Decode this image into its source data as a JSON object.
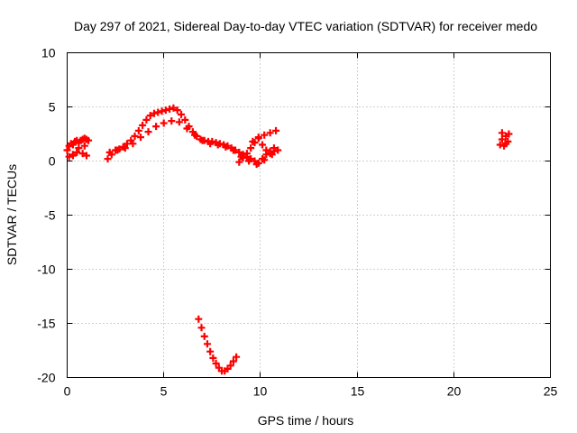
{
  "chart_data": {
    "type": "scatter",
    "title": "Day 297 of 2021, Sidereal Day-to-day VTEC variation (SDTVAR) for receiver medo",
    "xlabel": "GPS time / hours",
    "ylabel": "SDTVAR / TECUs",
    "xlim": [
      0,
      25
    ],
    "ylim": [
      -20,
      10
    ],
    "xticks": [
      0,
      5,
      10,
      15,
      20,
      25
    ],
    "yticks": [
      -20,
      -15,
      -10,
      -5,
      0,
      5,
      10
    ],
    "grid": true,
    "marker": "plus",
    "series": [
      {
        "name": "SDTVAR",
        "color": "#ff0000",
        "x": [
          0.0,
          0.1,
          0.2,
          0.3,
          0.4,
          0.5,
          0.6,
          0.7,
          0.8,
          0.9,
          1.0,
          1.1,
          0.3,
          0.5,
          0.8,
          1.0,
          0.1,
          0.3,
          0.6,
          0.9,
          2.1,
          2.3,
          2.5,
          2.7,
          2.9,
          3.1,
          3.3,
          3.5,
          3.7,
          3.9,
          4.1,
          4.3,
          4.5,
          4.7,
          4.9,
          5.1,
          5.3,
          5.5,
          5.7,
          5.9,
          6.1,
          6.3,
          6.5,
          6.7,
          6.9,
          7.1,
          7.3,
          7.5,
          7.7,
          7.9,
          8.1,
          8.3,
          8.5,
          8.7,
          8.9,
          9.1,
          9.3,
          9.5,
          9.7,
          9.9,
          10.1,
          10.3,
          10.5,
          10.7,
          10.9,
          2.2,
          2.6,
          3.0,
          3.4,
          3.8,
          4.2,
          4.6,
          5.0,
          5.4,
          5.8,
          6.2,
          6.6,
          7.0,
          7.4,
          7.8,
          8.2,
          8.6,
          9.0,
          9.4,
          9.8,
          10.2,
          10.6,
          9.6,
          9.9,
          10.2,
          10.5,
          10.8,
          8.9,
          9.1,
          9.3,
          9.5,
          9.7,
          9.9,
          10.1,
          10.3,
          10.5,
          10.7,
          6.8,
          6.95,
          7.1,
          7.25,
          7.4,
          7.55,
          7.7,
          7.85,
          8.0,
          8.15,
          8.3,
          8.45,
          8.6,
          8.75,
          22.4,
          22.5,
          22.6,
          22.7,
          22.8,
          22.5,
          22.7,
          22.85
        ],
        "y": [
          1.0,
          1.4,
          1.6,
          1.5,
          1.8,
          1.9,
          1.7,
          1.9,
          2.0,
          2.1,
          2.0,
          1.9,
          0.5,
          0.8,
          0.7,
          0.5,
          0.4,
          0.6,
          1.2,
          1.4,
          0.2,
          0.6,
          1.0,
          1.1,
          1.3,
          1.6,
          1.9,
          2.3,
          2.8,
          3.3,
          3.8,
          4.2,
          4.4,
          4.5,
          4.6,
          4.7,
          4.8,
          4.9,
          4.7,
          4.3,
          3.8,
          3.2,
          2.7,
          2.3,
          2.0,
          1.9,
          1.8,
          1.8,
          1.7,
          1.6,
          1.5,
          1.4,
          1.2,
          1.0,
          0.8,
          0.6,
          0.4,
          0.2,
          0.0,
          -0.2,
          0.2,
          0.6,
          0.9,
          1.2,
          1.0,
          0.8,
          1.0,
          1.2,
          1.6,
          2.2,
          2.7,
          3.2,
          3.5,
          3.7,
          3.6,
          3.0,
          2.4,
          1.9,
          1.6,
          1.5,
          1.3,
          1.0,
          0.4,
          0.0,
          -0.3,
          0.1,
          0.6,
          1.8,
          2.1,
          2.4,
          2.6,
          2.8,
          -0.1,
          0.3,
          0.7,
          1.2,
          1.7,
          2.2,
          1.5,
          1.0,
          0.7,
          0.9,
          -14.6,
          -15.4,
          -16.2,
          -16.9,
          -17.6,
          -18.2,
          -18.7,
          -19.1,
          -19.4,
          -19.4,
          -19.2,
          -18.9,
          -18.5,
          -18.1,
          1.5,
          2.0,
          1.4,
          2.3,
          1.8,
          2.6,
          1.6,
          2.5
        ]
      }
    ]
  }
}
